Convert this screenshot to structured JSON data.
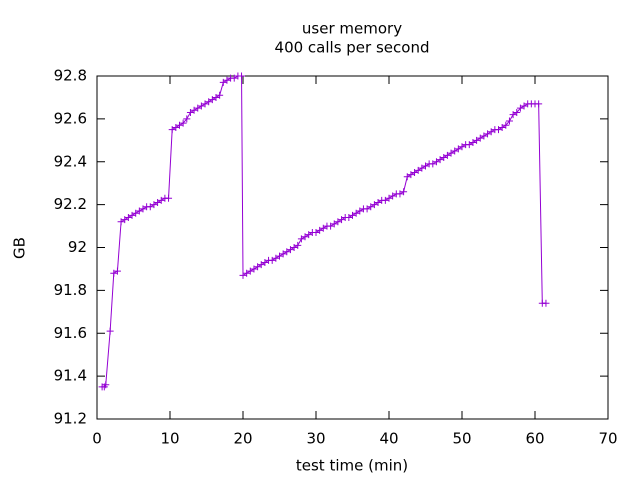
{
  "chart_data": {
    "type": "line",
    "title": "user memory",
    "subtitle": "400 calls per second",
    "xlabel": "test time (min)",
    "ylabel": "GB",
    "color": "#9400d3",
    "marker": "+",
    "xlim": [
      0,
      70
    ],
    "xticks": [
      0,
      10,
      20,
      30,
      40,
      50,
      60,
      70
    ],
    "ylim": [
      91.2,
      92.8
    ],
    "yticks": [
      91.2,
      91.4,
      91.6,
      91.8,
      92,
      92.2,
      92.4,
      92.6,
      92.8
    ],
    "x": [
      0.7,
      1.0,
      1.2,
      1.8,
      2.3,
      2.8,
      3.3,
      3.8,
      4.3,
      4.8,
      5.3,
      5.8,
      6.3,
      6.8,
      7.3,
      7.8,
      8.3,
      8.8,
      9.3,
      9.8,
      10.3,
      10.8,
      11.3,
      11.8,
      12.3,
      12.8,
      13.3,
      13.8,
      14.3,
      14.8,
      15.3,
      15.8,
      16.3,
      16.8,
      17.3,
      17.8,
      18.3,
      18.8,
      19.3,
      19.8,
      20.0,
      20.5,
      21.0,
      21.5,
      22.0,
      22.5,
      23.0,
      23.5,
      24.0,
      24.5,
      25.0,
      25.5,
      26.0,
      26.5,
      27.0,
      27.5,
      28.0,
      28.5,
      29.0,
      29.5,
      30.0,
      30.5,
      31.0,
      31.5,
      32.0,
      32.5,
      33.0,
      33.5,
      34.0,
      34.5,
      35.0,
      35.5,
      36.0,
      36.5,
      37.0,
      37.5,
      38.0,
      38.5,
      39.0,
      39.5,
      40.0,
      40.5,
      41.0,
      41.5,
      42.0,
      42.5,
      43.0,
      43.5,
      44.0,
      44.5,
      45.0,
      45.5,
      46.0,
      46.5,
      47.0,
      47.5,
      48.0,
      48.5,
      49.0,
      49.5,
      50.0,
      50.5,
      51.0,
      51.5,
      52.0,
      52.5,
      53.0,
      53.5,
      54.0,
      54.5,
      55.0,
      55.5,
      56.0,
      56.5,
      57.0,
      57.5,
      58.0,
      58.5,
      59.0,
      59.5,
      60.0,
      60.5,
      61.0,
      61.5
    ],
    "values": [
      91.35,
      91.35,
      91.36,
      91.61,
      91.88,
      91.89,
      92.12,
      92.13,
      92.14,
      92.15,
      92.16,
      92.17,
      92.18,
      92.19,
      92.19,
      92.2,
      92.21,
      92.22,
      92.23,
      92.23,
      92.55,
      92.56,
      92.57,
      92.58,
      92.6,
      92.63,
      92.64,
      92.65,
      92.66,
      92.67,
      92.68,
      92.69,
      92.7,
      92.71,
      92.77,
      92.78,
      92.79,
      92.79,
      92.8,
      92.8,
      91.87,
      91.88,
      91.89,
      91.9,
      91.91,
      91.92,
      91.93,
      91.94,
      91.94,
      91.95,
      91.96,
      91.97,
      91.98,
      91.99,
      92.0,
      92.01,
      92.04,
      92.05,
      92.06,
      92.07,
      92.07,
      92.08,
      92.09,
      92.1,
      92.1,
      92.11,
      92.12,
      92.13,
      92.14,
      92.14,
      92.15,
      92.16,
      92.17,
      92.18,
      92.18,
      92.19,
      92.2,
      92.21,
      92.22,
      92.22,
      92.23,
      92.24,
      92.25,
      92.25,
      92.26,
      92.33,
      92.34,
      92.35,
      92.36,
      92.37,
      92.38,
      92.39,
      92.39,
      92.4,
      92.41,
      92.42,
      92.43,
      92.44,
      92.45,
      92.46,
      92.47,
      92.48,
      92.48,
      92.49,
      92.5,
      92.51,
      92.52,
      92.53,
      92.54,
      92.55,
      92.55,
      92.56,
      92.57,
      92.59,
      92.62,
      92.63,
      92.65,
      92.66,
      92.67,
      92.67,
      92.67,
      92.67,
      91.74,
      91.74
    ]
  }
}
